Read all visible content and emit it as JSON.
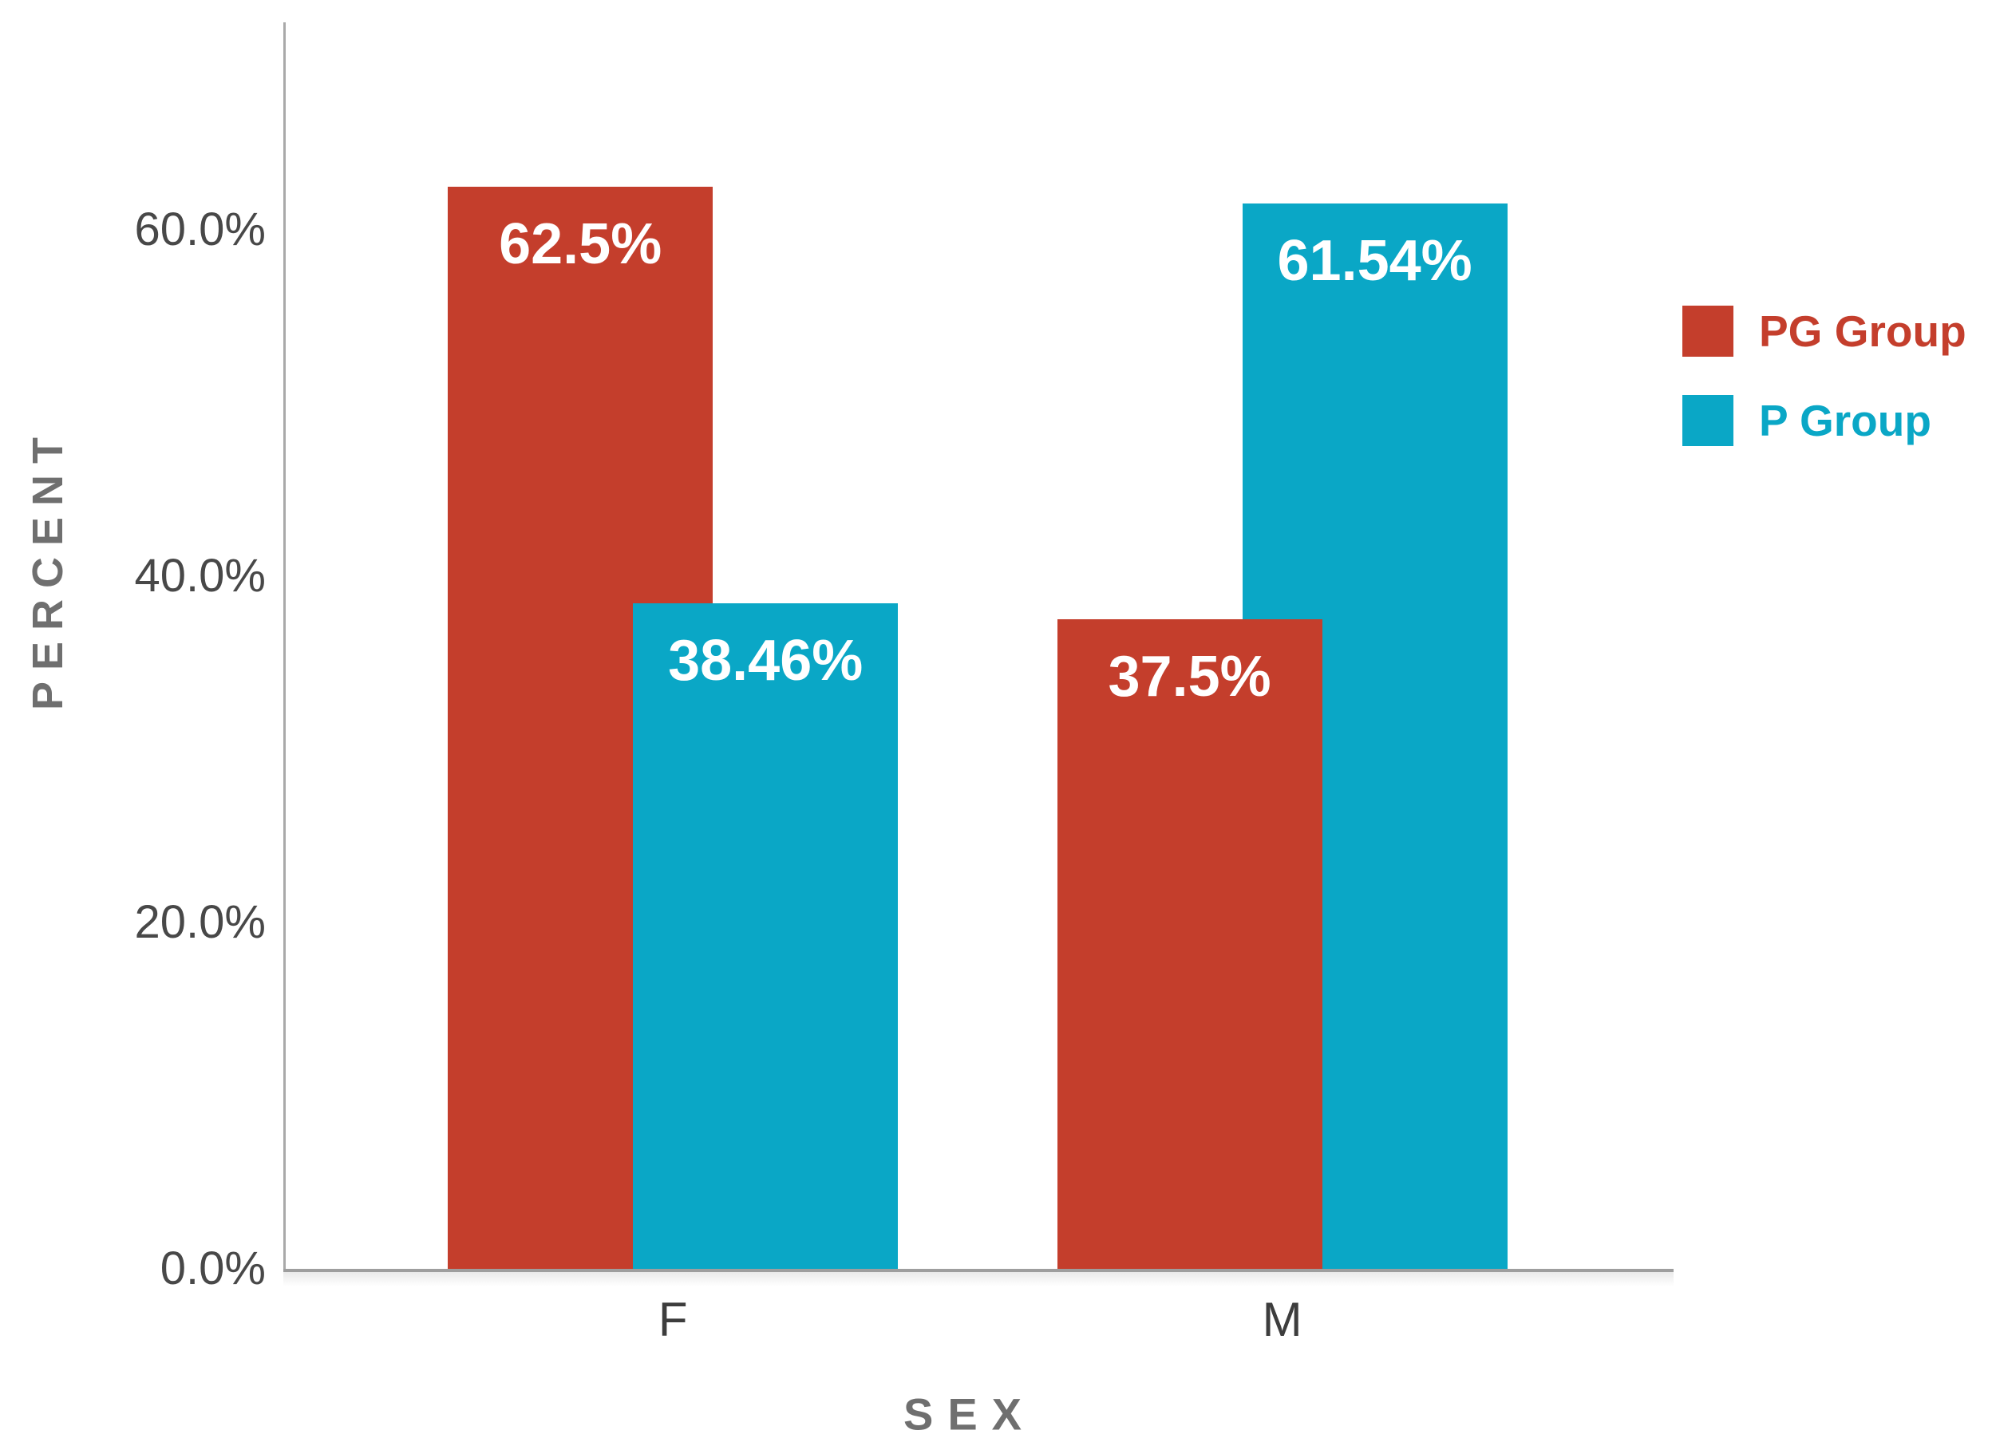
{
  "chart_data": {
    "type": "bar",
    "title": "",
    "xlabel": "SEX",
    "ylabel": "PERCENT",
    "categories": [
      "F",
      "M"
    ],
    "series": [
      {
        "name": "PG Group",
        "color": "#c43e2c",
        "values": [
          62.5,
          37.5
        ],
        "labels": [
          "62.5%",
          "37.5%"
        ]
      },
      {
        "name": "P Group",
        "color": "#0aa7c6",
        "values": [
          38.46,
          61.54
        ],
        "labels": [
          "38.46%",
          "61.54%"
        ]
      }
    ],
    "yticks": [
      {
        "value": 0,
        "label": "0.0%"
      },
      {
        "value": 20,
        "label": "20.0%"
      },
      {
        "value": 40,
        "label": "40.0%"
      },
      {
        "value": 60,
        "label": "60.0%"
      }
    ],
    "ylim": [
      0,
      72
    ],
    "grid": false,
    "legend_position": "right",
    "layout": {
      "group_centers_pct": [
        27.9,
        71.8
      ],
      "bar_width_pct": 19.1,
      "bar_offset_pct": 6.67,
      "front_bar": "shorter",
      "value_label_color": "#ffffff",
      "axis_line_color": "#9e9e9e",
      "tick_text_color": "#484848",
      "axis_title_color": "#6f6f6f",
      "background_color": "#ffffff"
    }
  }
}
